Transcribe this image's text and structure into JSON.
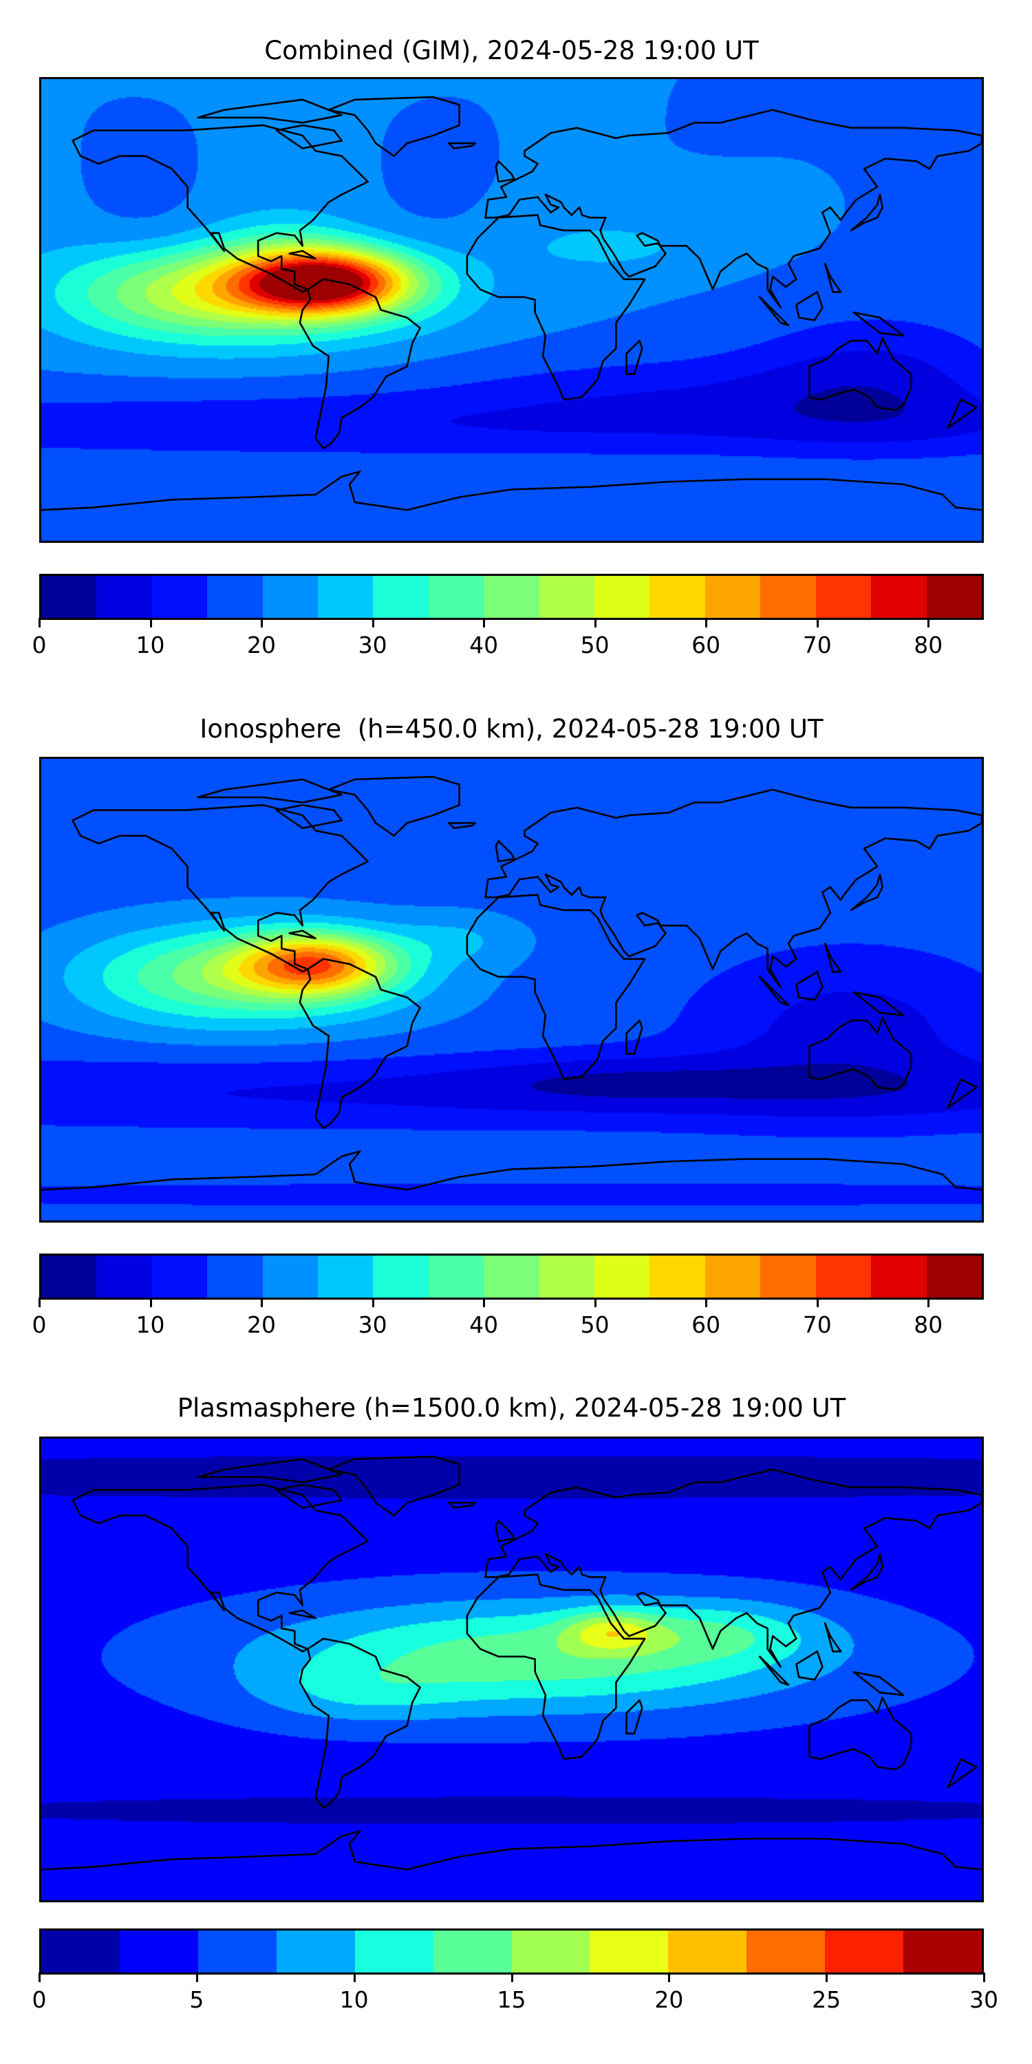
{
  "chart_data": [
    {
      "type": "heatmap",
      "title": "Combined (GIM), 2024-05-28 19:00 UT",
      "xlabel": "",
      "ylabel": "",
      "colorbar": {
        "min": 0,
        "max": 85,
        "step": 5,
        "ticks": [
          0,
          10,
          20,
          30,
          40,
          50,
          60,
          70,
          80
        ],
        "colors": [
          "#000098",
          "#0000e0",
          "#0010ff",
          "#0050ff",
          "#0090ff",
          "#00c8ff",
          "#1affd8",
          "#4affa8",
          "#7cff78",
          "#b0ff48",
          "#e0ff18",
          "#ffd800",
          "#ffa400",
          "#ff6c00",
          "#ff3400",
          "#e00000",
          "#9c0000"
        ]
      },
      "features": {
        "background_level": 20,
        "peak_value": 75,
        "peak_region": "Caribbean / northern South America"
      }
    },
    {
      "type": "heatmap",
      "title": "Ionosphere  (h=450.0 km), 2024-05-28 19:00 UT",
      "xlabel": "",
      "ylabel": "",
      "colorbar": {
        "min": 0,
        "max": 85,
        "step": 5,
        "ticks": [
          0,
          10,
          20,
          30,
          40,
          50,
          60,
          70,
          80
        ],
        "colors": [
          "#000098",
          "#0000e0",
          "#0010ff",
          "#0050ff",
          "#0090ff",
          "#00c8ff",
          "#1affd8",
          "#4affa8",
          "#7cff78",
          "#b0ff48",
          "#e0ff18",
          "#ffd800",
          "#ffa400",
          "#ff6c00",
          "#ff3400",
          "#e00000",
          "#9c0000"
        ]
      },
      "features": {
        "background_level": 18,
        "peak_value": 62,
        "peak_region": "Caribbean / northern South America"
      }
    },
    {
      "type": "heatmap",
      "title": "Plasmasphere (h=1500.0 km), 2024-05-28 19:00 UT",
      "xlabel": "",
      "ylabel": "",
      "colorbar": {
        "min": 0,
        "max": 30,
        "step": 2.5,
        "ticks": [
          0,
          5,
          10,
          15,
          20,
          25,
          30
        ],
        "colors": [
          "#0000aa",
          "#0000ff",
          "#0050ff",
          "#00a8ff",
          "#18ffe0",
          "#58ff98",
          "#a0ff50",
          "#e8ff18",
          "#ffc000",
          "#ff6c00",
          "#ff2000",
          "#aa0000"
        ]
      },
      "features": {
        "background_level": 4,
        "peak_value": 21,
        "peak_region": "Northeast Africa / Arabia"
      }
    }
  ]
}
